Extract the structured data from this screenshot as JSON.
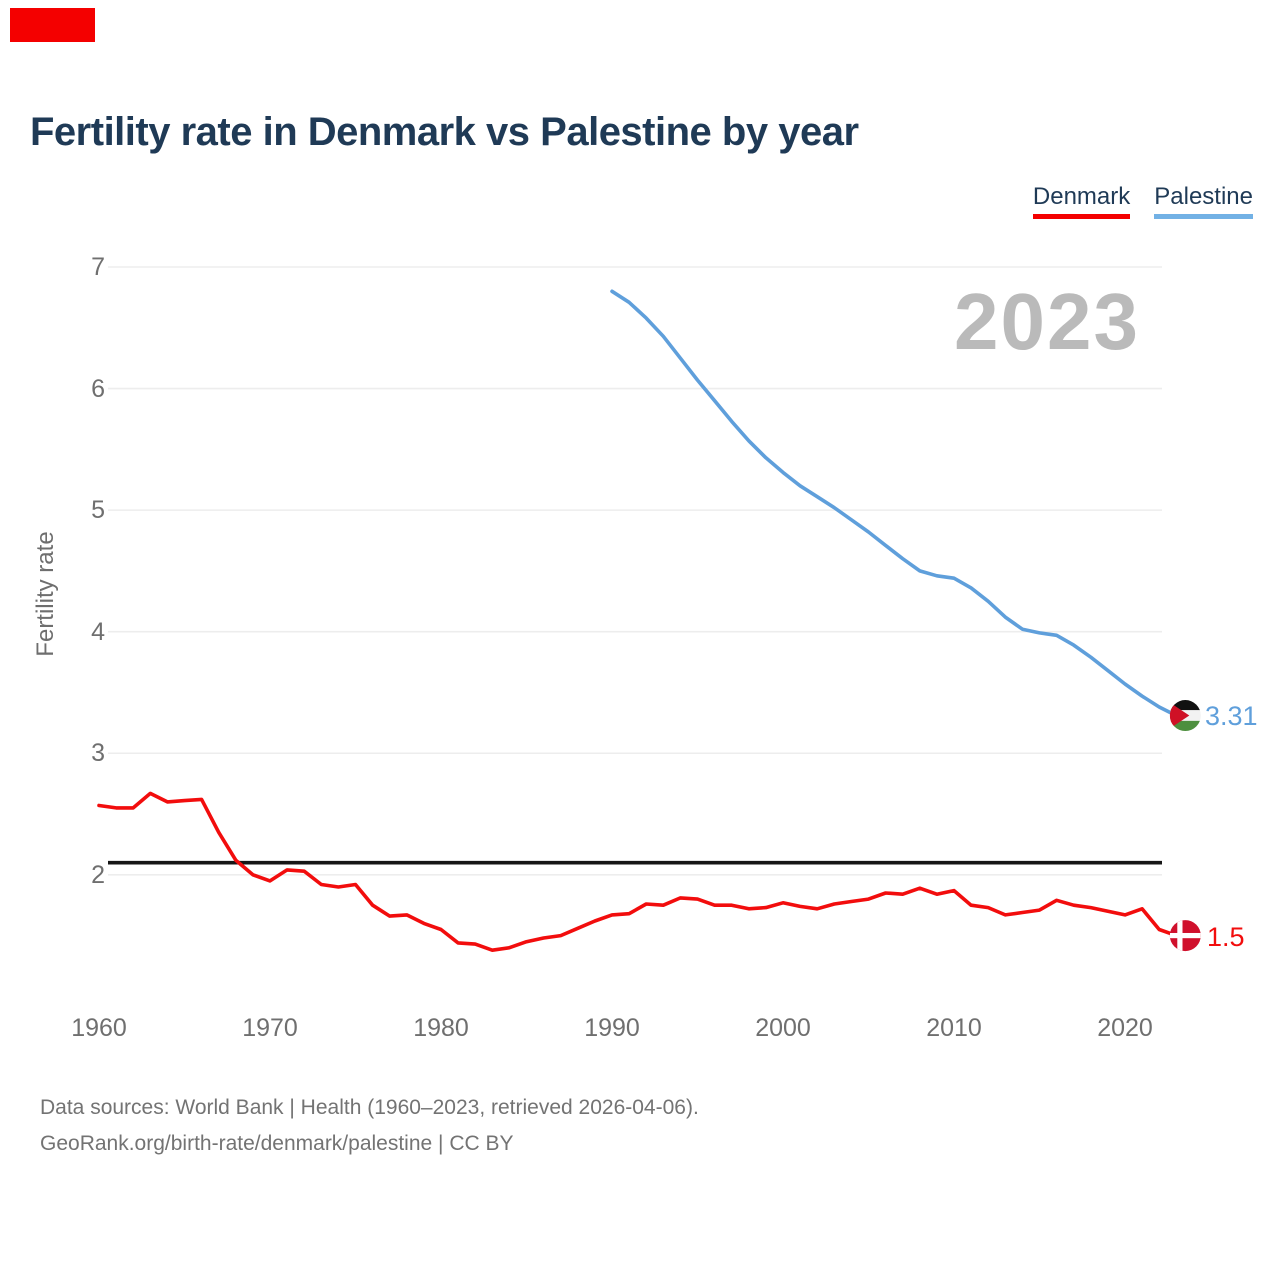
{
  "title": "Fertility rate in Denmark vs Palestine by year",
  "watermark": "2023",
  "y_axis_title": "Fertility rate",
  "legend": {
    "denmark_label": "Denmark",
    "palestine_label": "Palestine"
  },
  "colors": {
    "denmark_line": "#f20d0d",
    "denmark_underline": "#f40000",
    "palestine_line": "#5f9fdb",
    "palestine_underline": "#72b1e5",
    "replacement_line": "#161616",
    "gridline": "#ededed",
    "title_text": "#1f3a56",
    "axis_text": "#6f6f6f",
    "watermark_text": "#bababa",
    "brand_red": "#f40000",
    "denmark_flag_red": "#d0102c",
    "palestine_flag_green": "#4d8f3e",
    "palestine_flag_red": "#cf1126"
  },
  "end_labels": {
    "palestine_value": "3.31",
    "denmark_value": "1.5"
  },
  "footer": {
    "line1": "Data sources: World Bank | Health (1960–2023, retrieved 2026-04-06).",
    "line2": "GeoRank.org/birth-rate/denmark/palestine | CC BY"
  },
  "chart_data": {
    "type": "line",
    "title": "Fertility rate in Denmark vs Palestine by year",
    "xlabel": "",
    "ylabel": "Fertility rate",
    "xlim": [
      1959,
      2024
    ],
    "ylim": [
      1.2,
      7
    ],
    "yticks": [
      7,
      6,
      5,
      4,
      3,
      2
    ],
    "xticks": [
      1960,
      1970,
      1980,
      1990,
      2000,
      2010,
      2020
    ],
    "grid": "horizontal",
    "legend_position": "top-right",
    "annotations": {
      "replacement_level": 2.1,
      "year_watermark": "2023"
    },
    "series": [
      {
        "name": "Denmark",
        "color": "#f20d0d",
        "start_year": 1960,
        "end_value_label": "1.5",
        "values": [
          2.57,
          2.55,
          2.55,
          2.67,
          2.6,
          2.61,
          2.62,
          2.35,
          2.12,
          2.0,
          1.95,
          2.04,
          2.03,
          1.92,
          1.9,
          1.92,
          1.75,
          1.66,
          1.67,
          1.6,
          1.55,
          1.44,
          1.43,
          1.38,
          1.4,
          1.45,
          1.48,
          1.5,
          1.56,
          1.62,
          1.67,
          1.68,
          1.76,
          1.75,
          1.81,
          1.8,
          1.75,
          1.75,
          1.72,
          1.73,
          1.77,
          1.74,
          1.72,
          1.76,
          1.78,
          1.8,
          1.85,
          1.84,
          1.89,
          1.84,
          1.87,
          1.75,
          1.73,
          1.67,
          1.69,
          1.71,
          1.79,
          1.75,
          1.73,
          1.7,
          1.67,
          1.72,
          1.55,
          1.5
        ]
      },
      {
        "name": "Palestine",
        "color": "#5f9fdb",
        "start_year": 1990,
        "end_value_label": "3.31",
        "values": [
          6.8,
          6.71,
          6.58,
          6.43,
          6.25,
          6.07,
          5.9,
          5.73,
          5.57,
          5.43,
          5.31,
          5.2,
          5.11,
          5.02,
          4.92,
          4.82,
          4.71,
          4.6,
          4.5,
          4.46,
          4.44,
          4.36,
          4.25,
          4.12,
          4.02,
          3.99,
          3.97,
          3.89,
          3.79,
          3.68,
          3.57,
          3.47,
          3.38,
          3.31
        ]
      }
    ]
  }
}
